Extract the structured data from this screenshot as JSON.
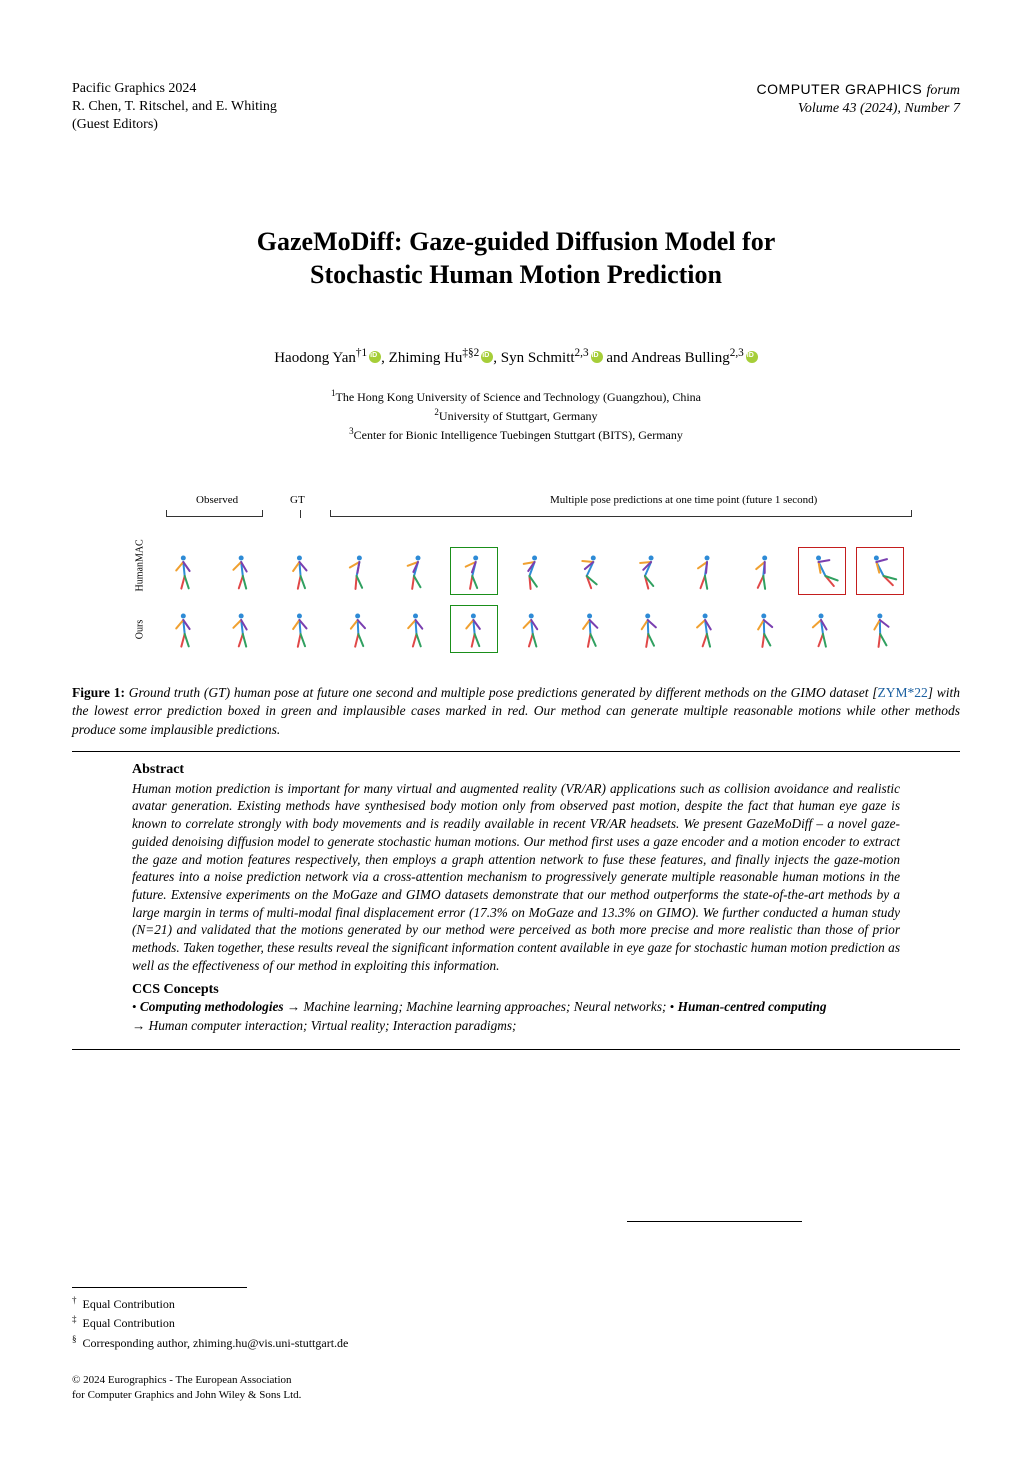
{
  "header": {
    "conf_line1": "Pacific Graphics 2024",
    "conf_line2": "R. Chen, T. Ritschel, and E. Whiting",
    "conf_line3": "(Guest Editors)",
    "journal_name": "COMPUTER GRAPHICS",
    "journal_forum": "forum",
    "volume_line": "Volume 43 (2024), Number 7"
  },
  "title_line1": "GazeMoDiff: Gaze-guided Diffusion Model for",
  "title_line2": "Stochastic Human Motion Prediction",
  "authors": {
    "a1": {
      "name": "Haodong Yan",
      "marks": "†1"
    },
    "a2": {
      "name": "Zhiming Hu",
      "marks": "‡§2"
    },
    "a3": {
      "name": "Syn Schmitt",
      "marks": "2,3"
    },
    "a4": {
      "name": "Andreas Bulling",
      "marks": "2,3"
    },
    "sep": ", ",
    "and": " and "
  },
  "affiliations": {
    "l1": "The Hong Kong University of Science and Technology (Guangzhou), China",
    "l2": "University of Stuttgart, Germany",
    "l3": "Center for Bionic Intelligence Tuebingen Stuttgart (BITS), Germany"
  },
  "figure": {
    "labels": {
      "observed": "Observed",
      "gt": "GT",
      "multi": "Multiple pose predictions at one time point (future 1 second)"
    },
    "row1_name": "HumanMAC",
    "row2_name": "Ours",
    "row1_variants": [
      {
        "torso": 10,
        "la": -40,
        "ra": 35,
        "ll": -15,
        "rl": 18,
        "box": ""
      },
      {
        "torso": 12,
        "la": -45,
        "ra": 30,
        "ll": -18,
        "rl": 15,
        "box": ""
      },
      {
        "torso": 8,
        "la": -35,
        "ra": 40,
        "ll": -12,
        "rl": 20,
        "box": ""
      },
      {
        "torso": -20,
        "la": -60,
        "ra": -10,
        "ll": -5,
        "rl": 25,
        "box": ""
      },
      {
        "torso": -30,
        "la": -70,
        "ra": -25,
        "ll": -8,
        "rl": 30,
        "box": ""
      },
      {
        "torso": -25,
        "la": -65,
        "ra": -20,
        "ll": -10,
        "rl": 22,
        "box": "green"
      },
      {
        "torso": -40,
        "la": -80,
        "ra": -35,
        "ll": 5,
        "rl": 35,
        "box": ""
      },
      {
        "torso": -55,
        "la": -95,
        "ra": -50,
        "ll": 20,
        "rl": 50,
        "box": ""
      },
      {
        "torso": -50,
        "la": -85,
        "ra": -45,
        "ll": 15,
        "rl": 40,
        "box": ""
      },
      {
        "torso": -15,
        "la": -55,
        "ra": -5,
        "ll": -20,
        "rl": 10,
        "box": ""
      },
      {
        "torso": -10,
        "la": -50,
        "ra": 0,
        "ll": -25,
        "rl": 8,
        "box": ""
      },
      {
        "torso": 60,
        "la": 10,
        "ra": 100,
        "ll": 40,
        "rl": 70,
        "box": "red"
      },
      {
        "torso": 65,
        "la": 15,
        "ra": 105,
        "ll": 45,
        "rl": 75,
        "box": "red"
      }
    ],
    "row2_variants": [
      {
        "torso": 10,
        "la": -40,
        "ra": 35,
        "ll": -15,
        "rl": 18,
        "box": ""
      },
      {
        "torso": 12,
        "la": -45,
        "ra": 30,
        "ll": -18,
        "rl": 15,
        "box": ""
      },
      {
        "torso": 8,
        "la": -35,
        "ra": 40,
        "ll": -12,
        "rl": 20,
        "box": ""
      },
      {
        "torso": 5,
        "la": -38,
        "ra": 42,
        "ll": -14,
        "rl": 22,
        "box": ""
      },
      {
        "torso": 7,
        "la": -42,
        "ra": 38,
        "ll": -16,
        "rl": 19,
        "box": ""
      },
      {
        "torso": 9,
        "la": -40,
        "ra": 36,
        "ll": -13,
        "rl": 21,
        "box": "green"
      },
      {
        "torso": 11,
        "la": -44,
        "ra": 33,
        "ll": -17,
        "rl": 16,
        "box": ""
      },
      {
        "torso": 6,
        "la": -36,
        "ra": 45,
        "ll": -11,
        "rl": 24,
        "box": ""
      },
      {
        "torso": 4,
        "la": -33,
        "ra": 48,
        "ll": -9,
        "rl": 26,
        "box": ""
      },
      {
        "torso": 13,
        "la": -47,
        "ra": 31,
        "ll": -19,
        "rl": 14,
        "box": ""
      },
      {
        "torso": 3,
        "la": -31,
        "ra": 50,
        "ll": -8,
        "rl": 28,
        "box": ""
      },
      {
        "torso": 14,
        "la": -48,
        "ra": 30,
        "ll": -20,
        "rl": 13,
        "box": ""
      },
      {
        "torso": 2,
        "la": -30,
        "ra": 52,
        "ll": -7,
        "rl": 29,
        "box": ""
      }
    ],
    "colors": {
      "torso": "#2e8bd6",
      "arm_l": "#f0a030",
      "arm_r": "#7a3fb0",
      "leg_l": "#e04848",
      "leg_r": "#30a060",
      "box_green": "#1a8f1a",
      "box_red": "#c41e1e"
    }
  },
  "caption": {
    "label": "Figure 1:",
    "text_before_ref": " Ground truth (GT) human pose at future one second and multiple pose predictions generated by different methods on the GIMO dataset [",
    "ref": "ZYM*22",
    "text_after_ref": "] with the lowest error prediction boxed in green and implausible cases marked in red. Our method can generate multiple reasonable motions while other methods produce some implausible predictions."
  },
  "abstract": {
    "heading": "Abstract",
    "body": "Human motion prediction is important for many virtual and augmented reality (VR/AR) applications such as collision avoidance and realistic avatar generation. Existing methods have synthesised body motion only from observed past motion, despite the fact that human eye gaze is known to correlate strongly with body movements and is readily available in recent VR/AR headsets. We present GazeMoDiff – a novel gaze-guided denoising diffusion model to generate stochastic human motions. Our method first uses a gaze encoder and a motion encoder to extract the gaze and motion features respectively, then employs a graph attention network to fuse these features, and finally injects the gaze-motion features into a noise prediction network via a cross-attention mechanism to progressively generate multiple reasonable human motions in the future. Extensive experiments on the MoGaze and GIMO datasets demonstrate that our method outperforms the state-of-the-art methods by a large margin in terms of multi-modal final displacement error (17.3% on MoGaze and 13.3% on GIMO). We further conducted a human study (N=21) and validated that the motions generated by our method were perceived as both more precise and more realistic than those of prior methods. Taken together, these results reveal the significant information content available in eye gaze for stochastic human motion prediction as well as the effectiveness of our method in exploiting this information."
  },
  "ccs": {
    "heading": "CCS Concepts",
    "part1_bold": "Computing methodologies",
    "part1_rest": "Machine learning; Machine learning approaches; Neural networks;",
    "part2_bold": "Human-centred computing",
    "part2_rest": "Human computer interaction; Virtual reality; Interaction paradigms;"
  },
  "footnotes": {
    "f1": "Equal Contribution",
    "f2": "Equal Contribution",
    "f3": "Corresponding author, zhiming.hu@vis.uni-stuttgart.de"
  },
  "copyright": {
    "l1": "© 2024 Eurographics - The European Association",
    "l2": "for Computer Graphics and John Wiley & Sons Ltd."
  }
}
